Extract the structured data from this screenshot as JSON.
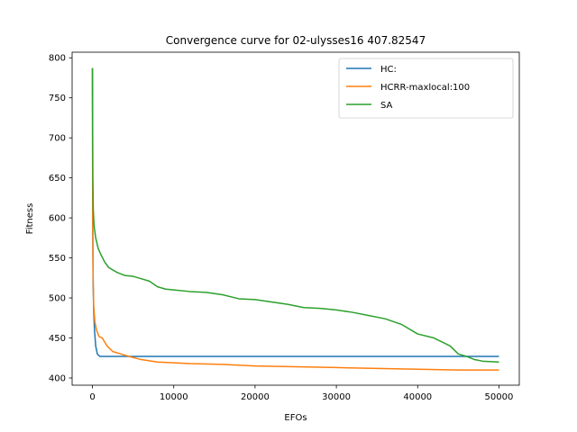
{
  "chart_data": {
    "type": "line",
    "title": "Convergence curve for 02-ulysses16 407.82547",
    "xlabel": "EFOs",
    "ylabel": "Fitness",
    "xlim": [
      -2500,
      52500
    ],
    "ylim": [
      391,
      807
    ],
    "xticks": [
      0,
      10000,
      20000,
      30000,
      40000,
      50000
    ],
    "yticks": [
      400,
      450,
      500,
      550,
      600,
      650,
      700,
      750,
      800
    ],
    "grid": false,
    "legend_position": "top-right",
    "series": [
      {
        "name": "HC:",
        "color": "#1f77b4",
        "points": [
          [
            0,
            787
          ],
          [
            30,
            600
          ],
          [
            80,
            520
          ],
          [
            150,
            485
          ],
          [
            250,
            460
          ],
          [
            400,
            440
          ],
          [
            600,
            430
          ],
          [
            900,
            427
          ],
          [
            1200,
            427
          ],
          [
            5000,
            427
          ],
          [
            20000,
            427
          ],
          [
            35000,
            427
          ],
          [
            50000,
            427
          ]
        ]
      },
      {
        "name": "HCRR-maxlocal:100",
        "color": "#ff7f0e",
        "points": [
          [
            0,
            787
          ],
          [
            30,
            600
          ],
          [
            80,
            530
          ],
          [
            150,
            490
          ],
          [
            300,
            470
          ],
          [
            500,
            460
          ],
          [
            800,
            452
          ],
          [
            1200,
            450
          ],
          [
            1800,
            440
          ],
          [
            2500,
            433
          ],
          [
            3500,
            430
          ],
          [
            4500,
            427
          ],
          [
            6000,
            423
          ],
          [
            8000,
            420
          ],
          [
            10000,
            419
          ],
          [
            12000,
            418
          ],
          [
            16000,
            417
          ],
          [
            20000,
            415
          ],
          [
            25000,
            414
          ],
          [
            30000,
            413
          ],
          [
            35000,
            412
          ],
          [
            40000,
            411
          ],
          [
            45000,
            410
          ],
          [
            50000,
            410
          ]
        ]
      },
      {
        "name": "SA",
        "color": "#2ca02c",
        "points": [
          [
            0,
            787
          ],
          [
            20,
            720
          ],
          [
            50,
            650
          ],
          [
            100,
            610
          ],
          [
            200,
            590
          ],
          [
            400,
            575
          ],
          [
            700,
            562
          ],
          [
            1000,
            555
          ],
          [
            1500,
            545
          ],
          [
            2000,
            538
          ],
          [
            3000,
            532
          ],
          [
            4000,
            528
          ],
          [
            5000,
            527
          ],
          [
            6000,
            524
          ],
          [
            7000,
            521
          ],
          [
            8000,
            514
          ],
          [
            9000,
            511
          ],
          [
            10000,
            510
          ],
          [
            12000,
            508
          ],
          [
            14000,
            507
          ],
          [
            16000,
            504
          ],
          [
            18000,
            499
          ],
          [
            20000,
            498
          ],
          [
            22000,
            495
          ],
          [
            24000,
            492
          ],
          [
            26000,
            488
          ],
          [
            28000,
            487
          ],
          [
            30000,
            485
          ],
          [
            32000,
            482
          ],
          [
            34000,
            478
          ],
          [
            36000,
            474
          ],
          [
            38000,
            467
          ],
          [
            40000,
            455
          ],
          [
            42000,
            450
          ],
          [
            44000,
            440
          ],
          [
            45000,
            430
          ],
          [
            46000,
            427
          ],
          [
            47000,
            423
          ],
          [
            48000,
            421
          ],
          [
            50000,
            420
          ]
        ]
      }
    ]
  }
}
